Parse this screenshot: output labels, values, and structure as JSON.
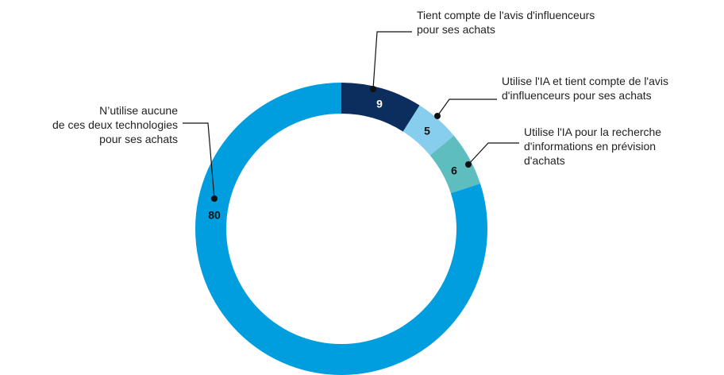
{
  "chart_data": {
    "type": "donut",
    "categories": [
      "Tient compte de l'avis d'influenceurs\npour ses achats",
      "Utilise l'IA et tient compte de l'avis\nd'influenceurs pour ses achats",
      "Utilise l'IA pour la recherche\nd'informations en prévision\nd'achats",
      "N’utilise aucune\nde ces deux technologies\npour ses achats"
    ],
    "values": [
      9,
      5,
      6,
      80
    ],
    "colors": [
      "#0b2e5e",
      "#86cdee",
      "#5dbdbf",
      "#009ddf"
    ],
    "value_label_colors": [
      "#ffffff",
      "#111111",
      "#111111",
      "#111111"
    ]
  }
}
